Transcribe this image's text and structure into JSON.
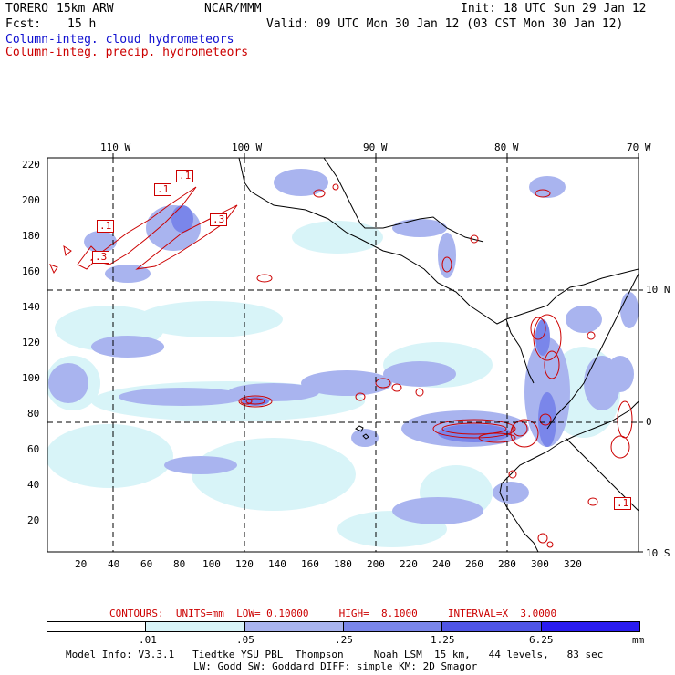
{
  "header": {
    "model": "TORERO",
    "resolution": "15km ARW",
    "org": "NCAR/MMM",
    "init": "Init: 18 UTC Sun 29 Jan 12",
    "fcst_label": "Fcst:",
    "fcst_value": "15 h",
    "valid": "Valid: 09 UTC Mon 30 Jan 12 (03 CST Mon 30 Jan 12)"
  },
  "fields": {
    "cloud": "Column-integ. cloud hydrometeors",
    "precip": "Column-integ. precip. hydrometeors"
  },
  "map": {
    "top_axis": [
      "110 W",
      "100 W",
      "90 W",
      "80 W",
      "70 W"
    ],
    "right_axis": [
      "10 N",
      "0",
      "10 S"
    ],
    "left_axis": [
      "220",
      "200",
      "180",
      "160",
      "140",
      "120",
      "100",
      "80",
      "60",
      "40",
      "20"
    ],
    "bottom_axis": [
      "20",
      "40",
      "60",
      "80",
      "100",
      "120",
      "140",
      "160",
      "180",
      "200",
      "220",
      "240",
      "260",
      "280",
      "300",
      "320"
    ],
    "contour_labels": [
      ".1",
      ".1",
      ".1",
      ".3",
      ".3",
      ".1"
    ]
  },
  "contours_info": "CONTOURS:  UNITS=mm  LOW= 0.10000     HIGH=  8.1000     INTERVAL=X  3.0000",
  "colorbar": {
    "ticks": [
      ".01",
      ".05",
      ".25",
      "1.25",
      "6.25"
    ],
    "unit": "mm",
    "colors": [
      "#ffffff",
      "#d8f4f8",
      "#a9b4ef",
      "#7a86ea",
      "#4f55e6",
      "#2a1cf0"
    ]
  },
  "footer": {
    "line1": "Model Info: V3.3.1   Tiedtke YSU PBL  Thompson     Noah LSM  15 km,   44 levels,   83 sec",
    "line2": "LW: Godd SW: Goddard DIFF: simple KM: 2D Smagor"
  }
}
